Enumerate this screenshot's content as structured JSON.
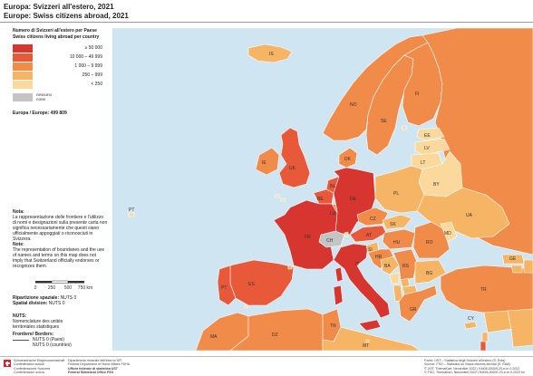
{
  "title": {
    "line1": "Europa: Svizzeri all'estero, 2021",
    "line2": "Europe: Swiss citizens abroad, 2021"
  },
  "legend": {
    "title_it": "Numero di Svizzeri all'estero per Paese",
    "title_en": "Swiss citizens living abroad per country",
    "classes": [
      {
        "label": "≥ 50 000",
        "color": "#d7352f"
      },
      {
        "label": "10 000 – 49 999",
        "color": "#e8593a"
      },
      {
        "label": "1 000 – 9 999",
        "color": "#f08b4a"
      },
      {
        "label": "250 – 999",
        "color": "#f6b465"
      },
      {
        "label": "< 250",
        "color": "#fbd89b"
      }
    ],
    "nodata": {
      "label_it": "nessuno",
      "label_en": "none",
      "color": "#c4c4c4"
    },
    "total": "Europa / Europe: 499 809"
  },
  "note": {
    "it_title": "Nota:",
    "it_text": "La rappresentazione delle frontiere e l'utilizzo di nomi e designazioni sulla presente carta non significa necessariamente che questi siano ufficialmente appoggiati o riconosciuti in Svizzera.",
    "en_title": "Note:",
    "en_text": "The representation of boundaries and the use of names and terms on this map does not imply that Switzerland officially endorses or recognizes them."
  },
  "scale": {
    "labels": [
      "0",
      "250",
      "500",
      "750 km"
    ]
  },
  "spatial": {
    "it_label": "Ripartizione spaziale:",
    "en_label": "Spatial division:",
    "value": "NUTS 0"
  },
  "nuts": {
    "title": "NUTS:",
    "line1": "Nomenclature des unités",
    "line2": "territoriales statistiques"
  },
  "frontiers": {
    "title": "Frontiere/ Borders:",
    "row1": "NUTS 0 (Paesi)",
    "row2": "NUTS 0 (countries)"
  },
  "footer": {
    "admin": [
      "Schweizerische Eidgenossenschaft",
      "Confédération suisse",
      "Confederazione Svizzera",
      "Confederaziun svizra"
    ],
    "dept": [
      "Dipartimento federale dell'interno DFI",
      "Federal Department of Home Affairs FDHA",
      "Ufficio federale di statistica UST",
      "Federal Statistical Office FSO"
    ],
    "source": [
      "Fonte: UST – Statistica degli Svizzeri all'estero (S. Esta)",
      "Source: FSO – Statistics on Swiss citizens abroad (S. Esta)",
      "© UST, ThemaKart, Neuchâtel 2022 | KM05-00000-20-e-m 0.2022",
      "© FSO, ThemaKart, Neuchâtel 2022 | KM05-00000-20-e-m 0.2022 en"
    ]
  },
  "map": {
    "sea_color": "#cfe6f2",
    "countries": [
      {
        "code": "IS",
        "cls": 3
      },
      {
        "code": "IE",
        "cls": 2
      },
      {
        "code": "UK",
        "cls": 1
      },
      {
        "code": "NO",
        "cls": 2
      },
      {
        "code": "SE",
        "cls": 2
      },
      {
        "code": "FI",
        "cls": 2
      },
      {
        "code": "DK",
        "cls": 2
      },
      {
        "code": "EE",
        "cls": 4
      },
      {
        "code": "LV",
        "cls": 4
      },
      {
        "code": "LT",
        "cls": 4
      },
      {
        "code": "RU",
        "cls": 2
      },
      {
        "code": "BY",
        "cls": 4
      },
      {
        "code": "UA",
        "cls": 3
      },
      {
        "code": "PL",
        "cls": 3
      },
      {
        "code": "DE",
        "cls": 0
      },
      {
        "code": "NL",
        "cls": 1
      },
      {
        "code": "BE",
        "cls": 1
      },
      {
        "code": "LU",
        "cls": 2
      },
      {
        "code": "FR",
        "cls": 0
      },
      {
        "code": "CH",
        "cls": 5
      },
      {
        "code": "AT",
        "cls": 1
      },
      {
        "code": "CZ",
        "cls": 2
      },
      {
        "code": "SK",
        "cls": 3
      },
      {
        "code": "HU",
        "cls": 2
      },
      {
        "code": "SI",
        "cls": 3
      },
      {
        "code": "HR",
        "cls": 2
      },
      {
        "code": "BA",
        "cls": 3
      },
      {
        "code": "RS",
        "cls": 2
      },
      {
        "code": "ME",
        "cls": 4
      },
      {
        "code": "AL",
        "cls": 3
      },
      {
        "code": "MK",
        "cls": 3
      },
      {
        "code": "XK",
        "cls": 3
      },
      {
        "code": "RO",
        "cls": 2
      },
      {
        "code": "MD",
        "cls": 4
      },
      {
        "code": "BG",
        "cls": 3
      },
      {
        "code": "GR",
        "cls": 2
      },
      {
        "code": "TR",
        "cls": 2
      },
      {
        "code": "IT",
        "cls": 0
      },
      {
        "code": "ES",
        "cls": 1
      },
      {
        "code": "PT",
        "cls": 1
      },
      {
        "code": "AD",
        "cls": 3
      },
      {
        "code": "MC",
        "cls": 4
      },
      {
        "code": "SM",
        "cls": 4
      },
      {
        "code": "VA",
        "cls": 4
      },
      {
        "code": "LI",
        "cls": 4
      },
      {
        "code": "MT",
        "cls": 3
      },
      {
        "code": "CY",
        "cls": 3
      },
      {
        "code": "GI",
        "cls": 4
      },
      {
        "code": "GE",
        "cls": 3
      },
      {
        "code": "AM",
        "cls": 3
      },
      {
        "code": "AZ",
        "cls": 3
      },
      {
        "code": "MA",
        "cls": 2
      },
      {
        "code": "DZ",
        "cls": 2
      },
      {
        "code": "TN",
        "cls": 2
      },
      {
        "code": "LY",
        "cls": 3
      },
      {
        "code": "SY",
        "cls": 3
      },
      {
        "code": "LB",
        "cls": 3
      },
      {
        "code": "IL",
        "cls": 1
      },
      {
        "code": "IQ",
        "cls": 3
      },
      {
        "code": "IR",
        "cls": 3
      },
      {
        "code": "PT-AZ",
        "cls": 4
      },
      {
        "code": "AX",
        "cls": 4
      },
      {
        "code": "GG",
        "cls": 4
      },
      {
        "code": "JE",
        "cls": 4
      }
    ]
  }
}
